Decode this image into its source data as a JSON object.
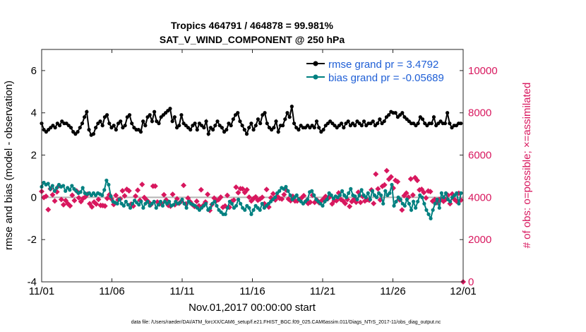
{
  "chart_data": {
    "type": "line",
    "title": "Tropics 464791 / 464878 = 99.981%",
    "subtitle": "SAT_V_WIND_COMPONENT @ 250 hPa",
    "xlabel": "Nov.01,2017 00:00:00 start",
    "ylabel": "rmse and bias (model - observation)",
    "ylabel_right": "# of obs: o=possible; ×=assimilated",
    "footer": "data file: /Users/raeder/DAI/ATM_forcXX/CAM6_setup/f.e21.FHIST_BGC.f09_025.CAM6assim.011/Diags_NTrS_2017-11/obs_diag_output.nc",
    "x_ticks": [
      "11/01",
      "11/06",
      "11/11",
      "11/16",
      "11/21",
      "11/26",
      "12/01"
    ],
    "x_tick_days": [
      0,
      5,
      10,
      15,
      20,
      25,
      30
    ],
    "xlim": [
      0,
      30
    ],
    "ylim": [
      -4,
      7
    ],
    "y_ticks": [
      -4,
      -2,
      0,
      2,
      4,
      6
    ],
    "ylim_right": [
      0,
      11000
    ],
    "y_ticks_right": [
      0,
      2000,
      4000,
      6000,
      8000,
      10000
    ],
    "colors": {
      "rmse": "#000000",
      "bias": "#008080",
      "obs": "#d8175e",
      "zero": "#b4b4b4"
    },
    "series": [
      {
        "name": "rmse grand pr = 3.4792",
        "values": [
          3.5,
          3.2,
          3.1,
          3.2,
          3.3,
          3.4,
          3.3,
          3.5,
          3.4,
          3.6,
          3.5,
          3.5,
          3.4,
          3.3,
          3.1,
          3.0,
          3.1,
          3.3,
          3.5,
          3.8,
          4.05,
          3.2,
          2.95,
          3.0,
          3.3,
          3.5,
          3.6,
          3.4,
          3.8,
          3.9,
          3.5,
          3.3,
          3.4,
          3.2,
          3.5,
          3.6,
          3.3,
          3.4,
          3.8,
          3.9,
          3.5,
          3.3,
          3.2,
          3.2,
          3.1,
          3.6,
          3.4,
          3.8,
          3.9,
          3.6,
          4.05,
          3.6,
          3.5,
          3.8,
          3.9,
          4.0,
          4.1,
          4.2,
          3.6,
          3.8,
          3.3,
          3.4,
          3.9,
          3.5,
          3.4,
          3.3,
          3.2,
          3.4,
          3.5,
          3.2,
          3.5,
          3.4,
          3.3,
          3.6,
          3.0,
          3.3,
          3.2,
          3.4,
          3.6,
          3.4,
          3.3,
          3.1,
          3.2,
          3.5,
          3.4,
          3.7,
          3.9,
          4.0,
          3.6,
          3.4,
          3.2,
          3.0,
          3.3,
          3.5,
          3.2,
          3.4,
          3.7,
          3.5,
          3.9,
          4.0,
          3.5,
          3.3,
          3.2,
          3.3,
          3.6,
          3.1,
          3.4,
          3.4,
          3.7,
          4.0,
          3.8,
          4.3,
          3.5,
          3.3,
          3.2,
          3.4,
          3.3,
          3.3,
          3.4,
          3.3,
          3.4,
          3.3,
          3.6,
          3.3,
          3.1,
          3.2,
          3.4,
          3.5,
          3.6,
          3.5,
          3.4,
          3.3,
          3.4,
          3.5,
          3.3,
          3.5,
          3.6,
          3.4,
          3.5,
          3.4,
          3.6,
          3.5,
          3.4,
          3.6,
          3.4,
          3.5,
          3.5,
          3.6,
          3.4,
          3.5,
          3.7,
          3.5,
          3.6,
          3.8,
          3.9,
          4.05,
          4.0,
          4.0,
          3.8,
          3.9,
          4.0,
          3.8,
          3.7,
          3.6,
          3.5,
          3.5,
          3.4,
          3.5,
          3.8,
          3.7,
          3.5,
          3.4,
          3.5,
          3.5,
          3.8,
          3.4,
          3.5,
          3.6,
          3.5,
          3.5,
          4.0,
          3.5,
          3.3,
          3.4,
          3.4,
          3.5,
          3.5
        ]
      },
      {
        "name": "bias grand pr = -0.05689",
        "values": [
          0.5,
          0.7,
          0.6,
          0.65,
          0.4,
          0.55,
          0.3,
          0.45,
          0.6,
          0.5,
          0.55,
          0.3,
          0.45,
          0.35,
          0.55,
          0.4,
          0.3,
          0.2,
          0.25,
          0.45,
          0.2,
          0.15,
          0.2,
          0.1,
          0.2,
          0.1,
          0.2,
          0.15,
          0.1,
          0.35,
          0.8,
          0.6,
          0.05,
          -0.2,
          -0.25,
          -0.3,
          -0.1,
          -0.3,
          -0.4,
          -0.2,
          -0.35,
          -0.5,
          -0.3,
          -0.15,
          -0.25,
          -0.35,
          -0.2,
          -0.5,
          -0.3,
          -0.2,
          -0.4,
          -0.3,
          -0.2,
          -0.5,
          -0.35,
          -0.2,
          -0.4,
          -0.2,
          -0.3,
          -0.2,
          -0.4,
          -0.35,
          -0.2,
          -0.3,
          -0.25,
          -0.1,
          -0.3,
          -0.5,
          -0.2,
          -0.3,
          -0.35,
          -0.4,
          -0.5,
          -0.6,
          -0.5,
          -0.4,
          -0.3,
          -0.6,
          -0.5,
          -0.3,
          -0.2,
          -0.4,
          -0.6,
          -0.7,
          -0.8,
          -0.8,
          -0.5,
          -0.2,
          -0.3,
          -0.5,
          -0.4,
          -0.1,
          -0.3,
          -0.5,
          -0.6,
          -0.4,
          -0.5,
          -0.8,
          -0.6,
          -0.4,
          -0.5,
          -0.6,
          -0.3,
          -0.5,
          -0.4,
          -0.3,
          -0.2,
          -0.1,
          0.0,
          0.2,
          0.3,
          0.45,
          0.4,
          0.5,
          0.3,
          0.1,
          -0.1,
          0.0,
          0.1,
          -0.1,
          -0.2,
          -0.3,
          -0.2,
          -0.1,
          0.25,
          0.3,
          0.1,
          -0.1,
          -0.2,
          -0.3,
          -0.4,
          -0.2,
          -0.1,
          0.2,
          0.1,
          -0.05,
          0.05,
          0.0,
          0.1,
          0.3,
          0.1,
          0.0,
          0.2,
          0.4,
          0.1,
          0.05,
          -0.1,
          0.1,
          0.35,
          0.1,
          0.0,
          0.2,
          -0.1,
          0.3,
          0.1,
          0.0,
          0.2,
          0.1,
          -0.3,
          0.3,
          0.1,
          0.2,
          0.6,
          -0.4,
          -0.2,
          0.0,
          -0.1,
          -0.3,
          -0.4,
          -0.1,
          -0.3,
          -0.6,
          -0.2,
          -0.5,
          -0.2,
          0.1,
          0.0,
          -0.3,
          -0.6,
          -0.8,
          -1.0,
          -0.6,
          -0.3,
          -0.1,
          -0.5,
          0.2,
          0.0,
          0.2,
          -0.1,
          -0.2,
          0.0,
          0.1,
          0.2,
          -0.3,
          0.2
        ]
      }
    ],
    "obs_counts": [
      4280,
      3990,
      4050,
      3420,
      4400,
      4120,
      3830,
      4260,
      4550,
      3900,
      3650,
      3850,
      3700,
      3600,
      4100,
      3850,
      4300,
      3980,
      3800,
      3950,
      4020,
      4150,
      3700,
      3550,
      3780,
      3680,
      3900,
      3620,
      3610,
      3590,
      3950,
      4120,
      3920,
      3660,
      4090,
      3880,
      3930,
      4310,
      4070,
      4380,
      4310,
      3680,
      3590,
      4060,
      4340,
      3860,
      4610,
      3990,
      3880,
      3780,
      3650,
      4530,
      4530,
      3780,
      3680,
      3710,
      4120,
      3880,
      3620,
      3580,
      4140,
      3650,
      3930,
      3720,
      3820,
      4570,
      3690,
      3960,
      3790,
      3660,
      3570,
      3810,
      3600,
      4360,
      3620,
      3780,
      4140,
      3380,
      3660,
      3960,
      3840,
      3890,
      4010,
      3530,
      3590,
      4090,
      3530,
      3810,
      3870,
      4480,
      4220,
      4410,
      4400,
      4230,
      4360,
      4010,
      3830,
      3940,
      4020,
      3860,
      3920,
      4000,
      3700,
      4370,
      3540,
      3980,
      4170,
      3880,
      4040,
      3950,
      3920,
      4130,
      4340,
      3920,
      3840,
      4050,
      3830,
      3830,
      3900,
      3970,
      4080,
      3810,
      3710,
      3770,
      4100,
      3760,
      3880,
      3750,
      3820,
      3920,
      4040,
      3930,
      4030,
      3690,
      3850,
      3840,
      4210,
      3900,
      3830,
      3710,
      3900,
      3570,
      3800,
      3910,
      3770,
      4240,
      3760,
      4040,
      3830,
      3890,
      3860,
      4350,
      3710,
      5100,
      4400,
      3880,
      4520,
      4590,
      5260,
      4860,
      4970,
      4440,
      4800,
      4740,
      3880,
      3400,
      4080,
      4200,
      4010,
      4870,
      4110,
      4930,
      4800,
      4350,
      4380,
      4230,
      3970,
      4300,
      4270,
      3820,
      3900,
      3750,
      3900,
      3900,
      3810,
      3900,
      4100,
      3700,
      4160,
      3900,
      3810,
      4190,
      3870
    ]
  }
}
